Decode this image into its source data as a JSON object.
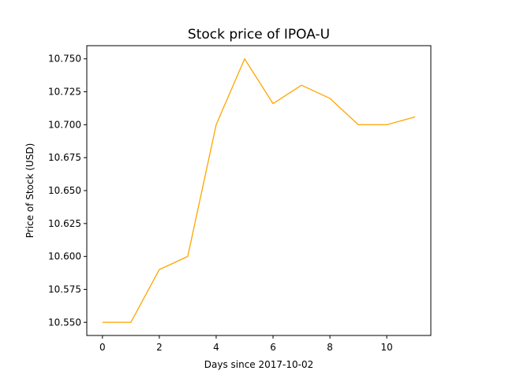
{
  "chart_data": {
    "type": "line",
    "title": "Stock price of IPOA-U",
    "xlabel": "Days since 2017-10-02",
    "ylabel": "Price of Stock (USD)",
    "xlim": [
      -0.55,
      11.55
    ],
    "ylim": [
      10.54,
      10.76
    ],
    "x_ticks": [
      0,
      2,
      4,
      6,
      8,
      10
    ],
    "x_tick_labels": [
      "0",
      "2",
      "4",
      "6",
      "8",
      "10"
    ],
    "y_ticks": [
      10.55,
      10.575,
      10.6,
      10.625,
      10.65,
      10.675,
      10.7,
      10.725,
      10.75
    ],
    "y_tick_labels": [
      "10.550",
      "10.575",
      "10.600",
      "10.625",
      "10.650",
      "10.675",
      "10.700",
      "10.725",
      "10.750"
    ],
    "grid": false,
    "series": [
      {
        "color": "#ffa500",
        "x": [
          0,
          1,
          2,
          3,
          4,
          5,
          6,
          7,
          8,
          9,
          10,
          11
        ],
        "y": [
          10.55,
          10.55,
          10.59,
          10.6,
          10.7,
          10.75,
          10.716,
          10.73,
          10.72,
          10.7,
          10.7,
          10.706
        ]
      }
    ]
  }
}
